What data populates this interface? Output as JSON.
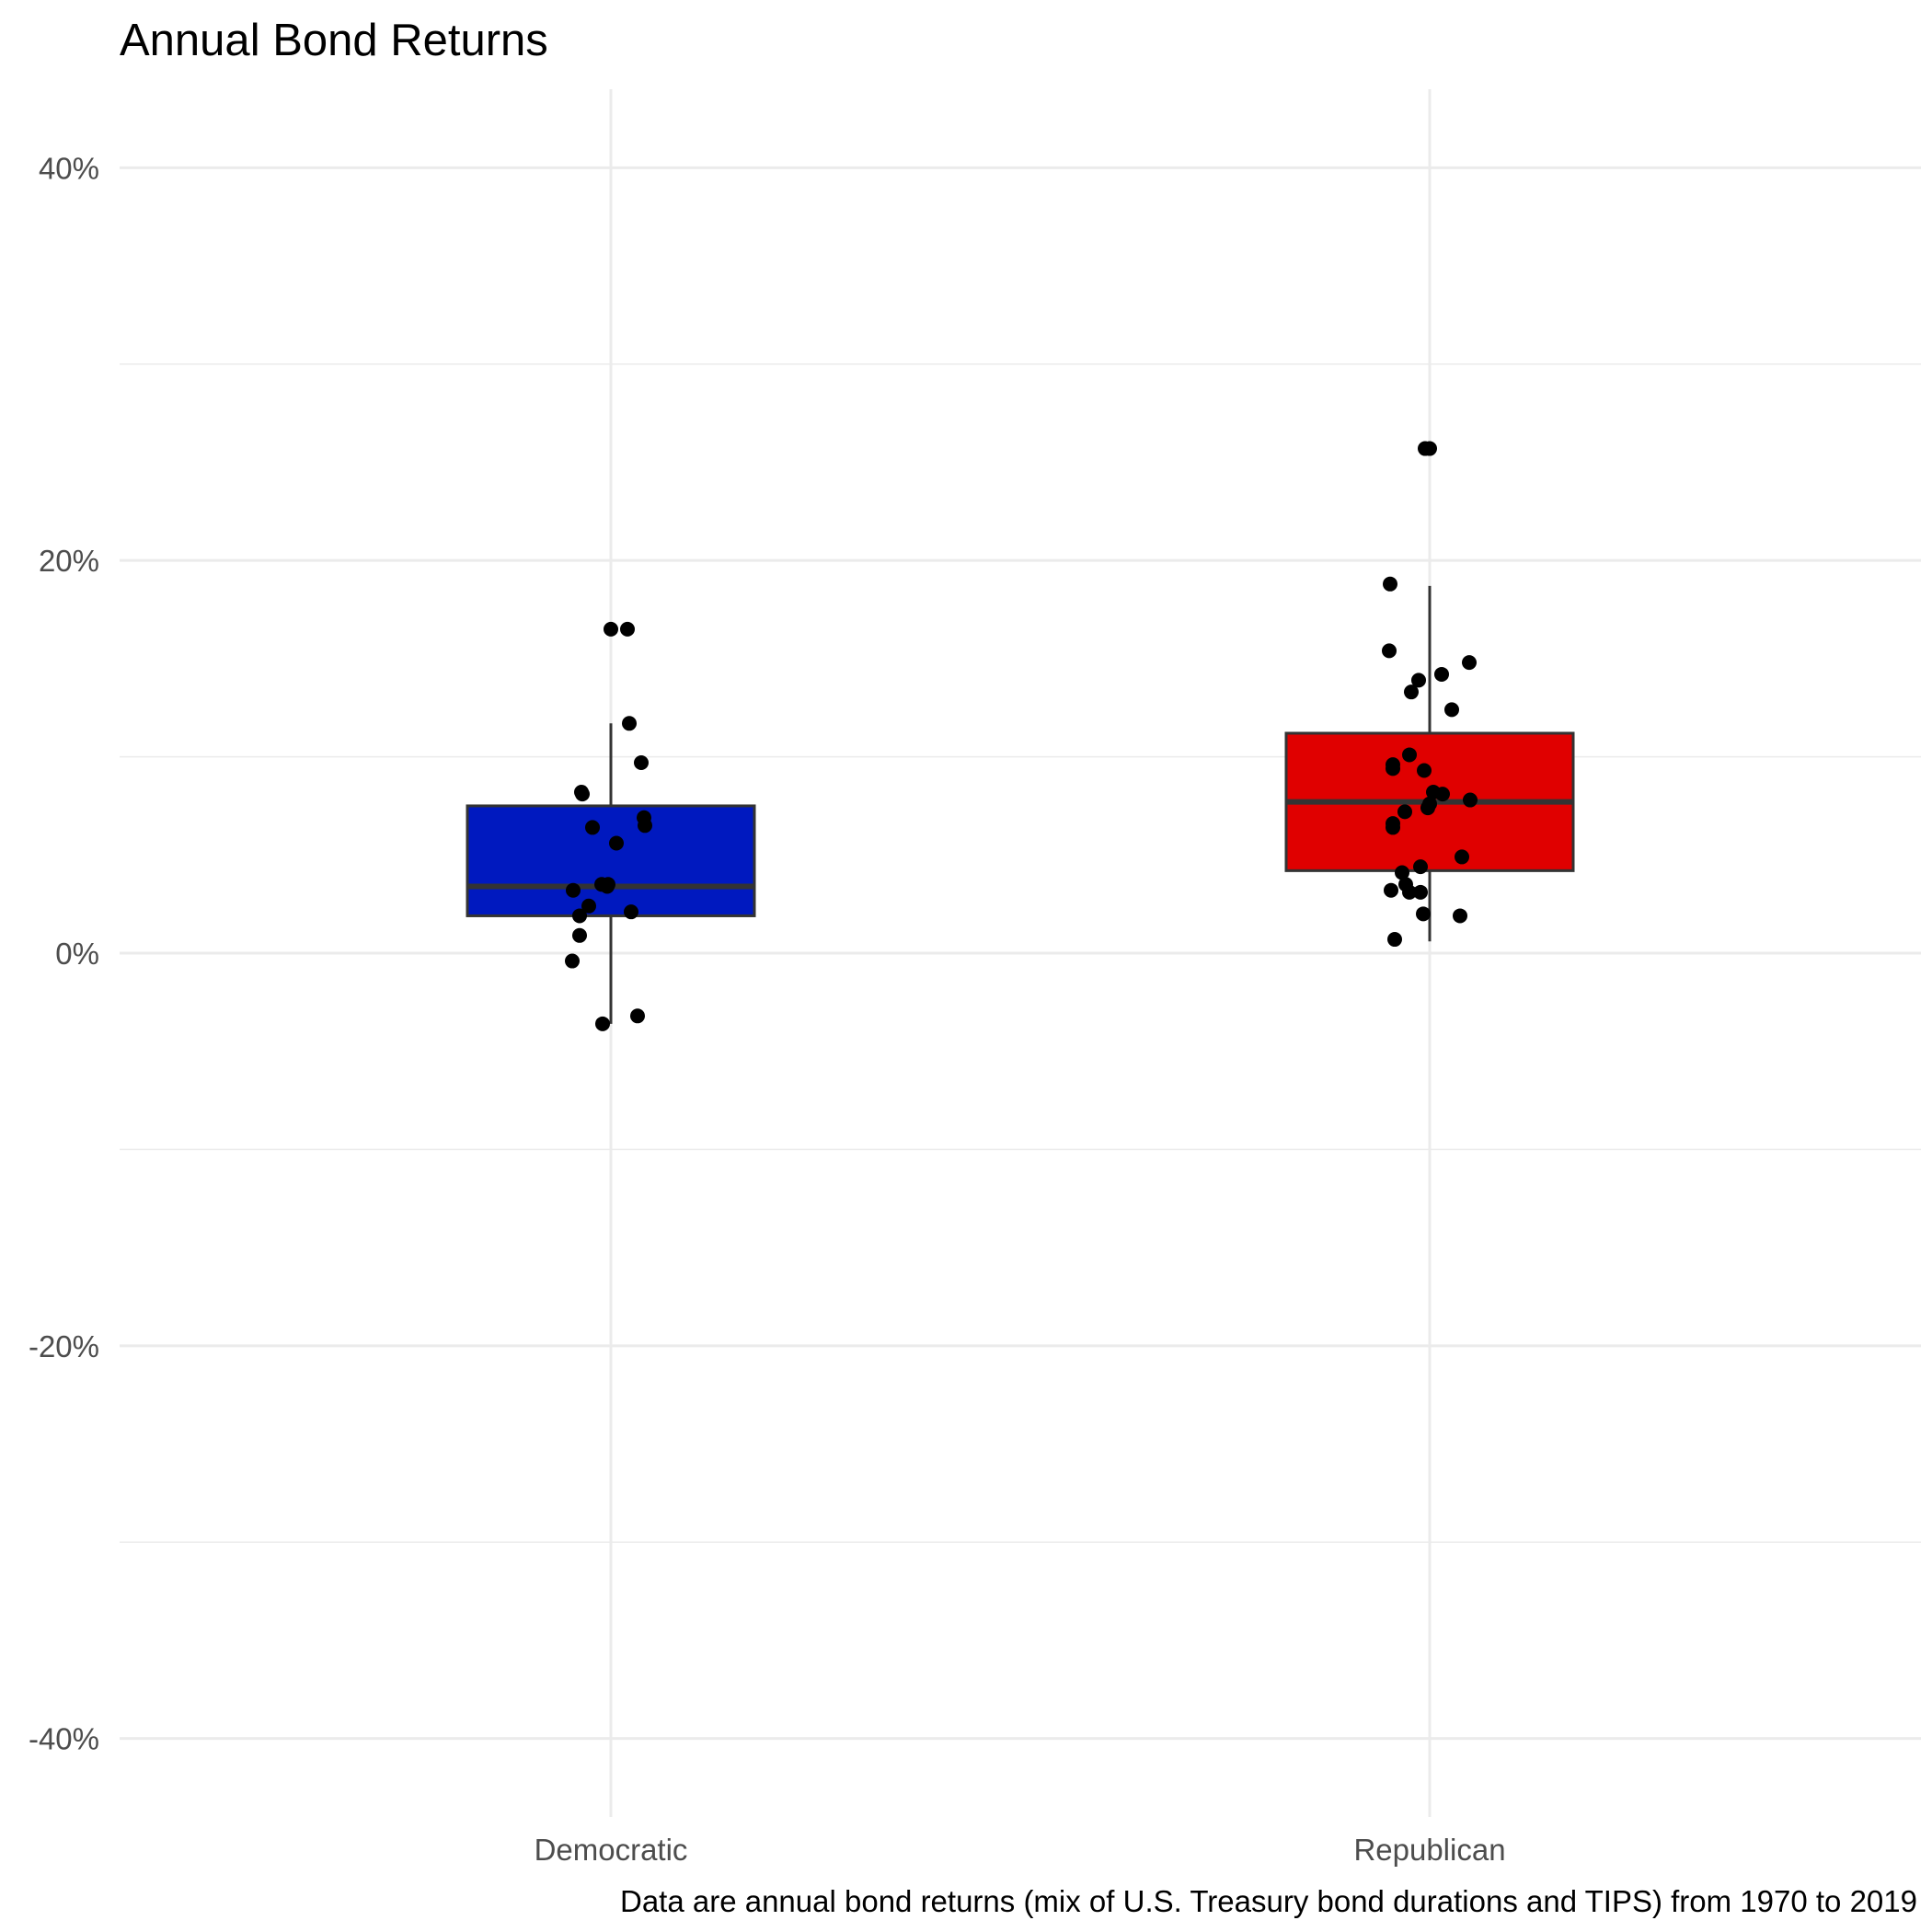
{
  "chart_data": {
    "type": "box",
    "title": "Annual Bond Returns",
    "caption": "Data are annual bond returns (mix of U.S. Treasury bond durations and TIPS) from 1970 to 2019",
    "xlabel": "",
    "ylabel": "",
    "ylim": [
      -0.44,
      0.44
    ],
    "y_ticks": [
      -0.4,
      -0.2,
      0.0,
      0.2,
      0.4
    ],
    "y_tick_labels": [
      "-40%",
      "-20%",
      "0%",
      "20%",
      "40%"
    ],
    "y_minor_gridlines": [
      -0.3,
      -0.1,
      0.1,
      0.3
    ],
    "grid": true,
    "legend": "none",
    "categories": [
      "Democratic",
      "Republican"
    ],
    "series": [
      {
        "category": "Democratic",
        "color": "#0019BF",
        "box": {
          "q1": 0.019,
          "median": 0.034,
          "q3": 0.075,
          "whisker_low": -0.036,
          "whisker_high": 0.117
        },
        "points": [
          0.165,
          0.165,
          0.117,
          0.097,
          0.082,
          0.081,
          0.069,
          0.065,
          0.064,
          0.056,
          0.035,
          0.035,
          0.034,
          0.032,
          0.024,
          0.021,
          0.019,
          0.009,
          -0.004,
          -0.032,
          -0.036
        ]
      },
      {
        "category": "Republican",
        "color": "#E00000",
        "box": {
          "q1": 0.042,
          "median": 0.077,
          "q3": 0.112,
          "whisker_low": 0.006,
          "whisker_high": 0.187
        },
        "points": [
          0.257,
          0.257,
          0.188,
          0.154,
          0.148,
          0.142,
          0.139,
          0.133,
          0.124,
          0.101,
          0.096,
          0.094,
          0.093,
          0.082,
          0.081,
          0.078,
          0.076,
          0.074,
          0.072,
          0.066,
          0.064,
          0.049,
          0.044,
          0.041,
          0.035,
          0.032,
          0.031,
          0.031,
          0.02,
          0.019,
          0.007
        ]
      }
    ]
  }
}
